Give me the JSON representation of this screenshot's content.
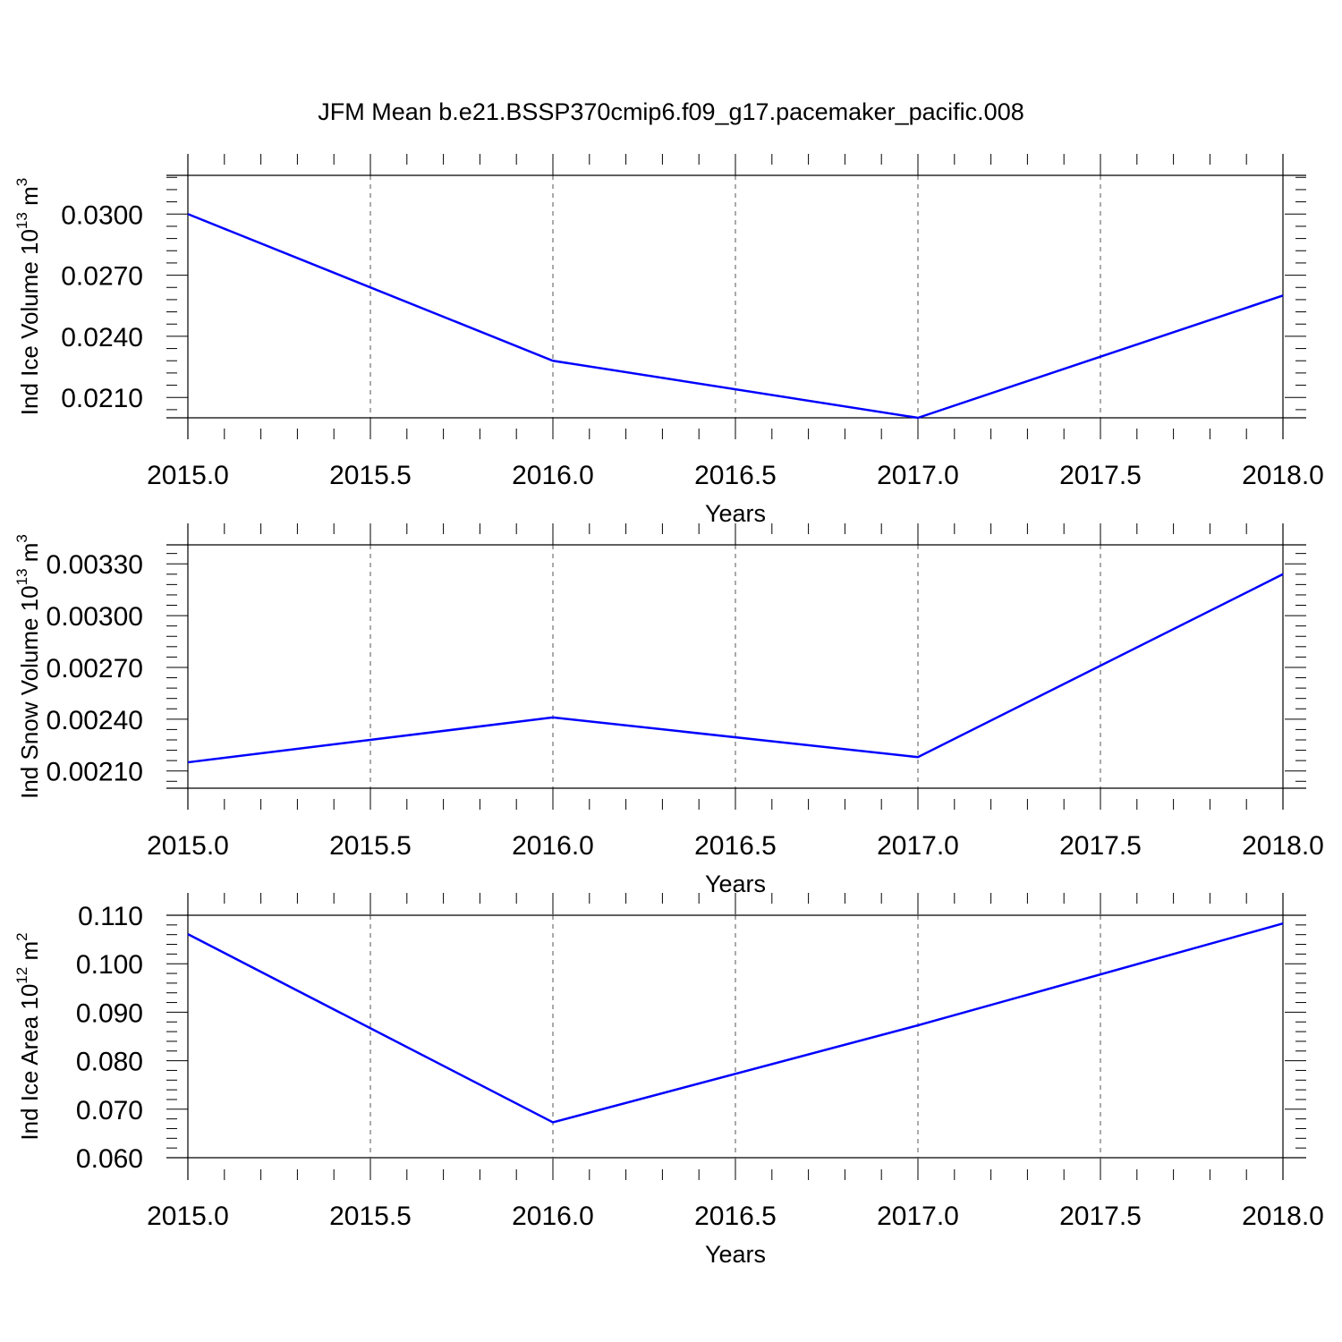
{
  "title": "JFM Mean b.e21.BSSP370cmip6.f09_g17.pacemaker_pacific.008",
  "line_color": "#0000ff",
  "chart_data": [
    {
      "type": "line",
      "ylabel": "Ind Ice Volume 10",
      "ylabel_exp": "13",
      "ylabel_unit": " m",
      "ylabel_unit_exp": "3",
      "xlabel": "Years",
      "xlim": [
        2015.0,
        2018.0
      ],
      "ylim": [
        0.02,
        0.0319
      ],
      "x_ticks": [
        "2015.0",
        "2015.5",
        "2016.0",
        "2016.5",
        "2017.0",
        "2017.5",
        "2018.0"
      ],
      "y_ticks": [
        "0.0210",
        "0.0240",
        "0.0270",
        "0.0300"
      ],
      "y_tick_values": [
        0.021,
        0.024,
        0.027,
        0.03
      ],
      "x": [
        2015,
        2016,
        2017,
        2018
      ],
      "series": [
        {
          "values": [
            0.03,
            0.0228,
            0.02,
            0.026
          ]
        }
      ]
    },
    {
      "type": "line",
      "ylabel": "Ind Snow Volume 10",
      "ylabel_exp": "13",
      "ylabel_unit": " m",
      "ylabel_unit_exp": "3",
      "xlabel": "Years",
      "xlim": [
        2015.0,
        2018.0
      ],
      "ylim": [
        0.002,
        0.00341
      ],
      "x_ticks": [
        "2015.0",
        "2015.5",
        "2016.0",
        "2016.5",
        "2017.0",
        "2017.5",
        "2018.0"
      ],
      "y_ticks": [
        "0.00210",
        "0.00240",
        "0.00270",
        "0.00300",
        "0.00330"
      ],
      "y_tick_values": [
        0.0021,
        0.0024,
        0.0027,
        0.003,
        0.0033
      ],
      "x": [
        2015,
        2016,
        2017,
        2018
      ],
      "series": [
        {
          "values": [
            0.00215,
            0.00241,
            0.00218,
            0.00324
          ]
        }
      ]
    },
    {
      "type": "line",
      "ylabel": "Ind Ice Area 10",
      "ylabel_exp": "12",
      "ylabel_unit": " m",
      "ylabel_unit_exp": "2",
      "xlabel": "Years",
      "xlim": [
        2015.0,
        2018.0
      ],
      "ylim": [
        0.06,
        0.11
      ],
      "x_ticks": [
        "2015.0",
        "2015.5",
        "2016.0",
        "2016.5",
        "2017.0",
        "2017.5",
        "2018.0"
      ],
      "y_ticks": [
        "0.060",
        "0.070",
        "0.080",
        "0.090",
        "0.100",
        "0.110"
      ],
      "y_tick_values": [
        0.06,
        0.07,
        0.08,
        0.09,
        0.1,
        0.11
      ],
      "x": [
        2015,
        2016,
        2017,
        2018
      ],
      "series": [
        {
          "values": [
            0.1061,
            0.0673,
            0.0873,
            0.1083
          ]
        }
      ]
    }
  ]
}
